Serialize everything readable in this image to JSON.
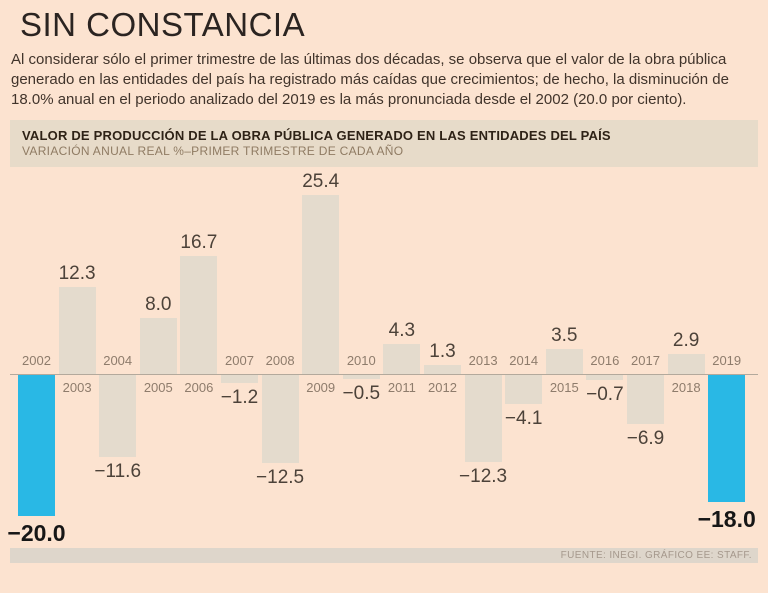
{
  "title": "SIN CONSTANCIA",
  "intro": "Al considerar sólo el primer trimestre de las últimas dos décadas, se observa que el valor de la obra pública generado en las entidades del país ha registrado más caídas que crecimientos; de hecho, la disminución de 18.0% anual en el periodo analizado del 2019 es la más pronunciada desde el 2002 (20.0 por ciento).",
  "chart_header": {
    "title": "VALOR DE PRODUCCIÓN DE LA OBRA PÚBLICA GENERADO EN LAS ENTIDADES DEL PAÍS",
    "subtitle": "VARIACIÓN ANUAL REAL %–PRIMER TRIMESTRE DE CADA AÑO"
  },
  "footer": {
    "source": "FUENTE: INEGI. GRÁFICO EE: STAFF."
  },
  "colors": {
    "background": "#fce3d0",
    "bar": "#e4dbcd",
    "highlight": "#29b8e5",
    "band": "#e7dbc9",
    "footer_bar": "#ded6cb",
    "axis": "#b3a99c",
    "value_label": "#4c4239",
    "big_value_label": "#161616",
    "year_label": "#8e7c6c"
  },
  "chart_data": {
    "type": "bar",
    "title": "VALOR DE PRODUCCIÓN DE LA OBRA PÚBLICA GENERADO EN LAS ENTIDADES DEL PAÍS",
    "subtitle": "VARIACIÓN ANUAL REAL %–PRIMER TRIMESTRE DE CADA AÑO",
    "categories": [
      "2002",
      "2003",
      "2004",
      "2005",
      "2006",
      "2007",
      "2008",
      "2009",
      "2010",
      "2011",
      "2012",
      "2013",
      "2014",
      "2015",
      "2016",
      "2017",
      "2018",
      "2019"
    ],
    "values": [
      -20.0,
      12.3,
      -11.6,
      8.0,
      16.7,
      -1.2,
      -12.5,
      25.4,
      -0.5,
      4.3,
      1.3,
      -12.3,
      -4.1,
      3.5,
      -0.7,
      -6.9,
      2.9,
      -18.0
    ],
    "highlighted_categories": [
      "2002",
      "2019"
    ],
    "xlabel": "",
    "ylabel": "Variación anual real %",
    "ylim": [
      -22,
      27
    ],
    "grid": false,
    "legend": "none"
  }
}
